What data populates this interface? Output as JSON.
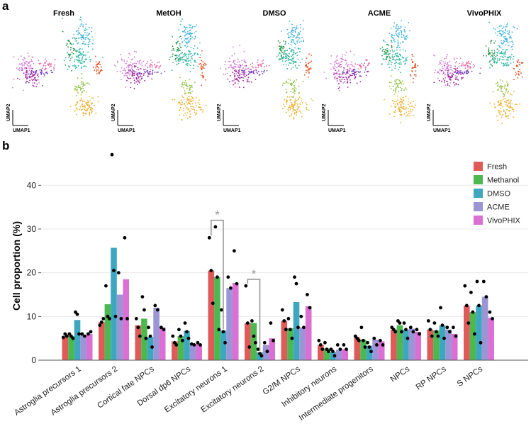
{
  "panel_a_label": "a",
  "panel_b_label": "b",
  "umap": {
    "axis_x": "UMAP1",
    "axis_y": "UMAP2",
    "panels": [
      {
        "title": "Fresh"
      },
      {
        "title": "MetOH"
      },
      {
        "title": "DMSO"
      },
      {
        "title": "ACME"
      },
      {
        "title": "VivoPHIX"
      }
    ],
    "cluster_colors": [
      "#d580d8",
      "#9a1f9a",
      "#6a3fc4",
      "#e8609a",
      "#1f8f3a",
      "#3fb3d8",
      "#2fb8a0",
      "#e05020",
      "#8cc03f",
      "#f0b030"
    ]
  },
  "chart_data": {
    "type": "bar",
    "title": "",
    "xlabel": "",
    "ylabel": "Cell proportion (%)",
    "ylim": [
      0,
      48
    ],
    "yticks": [
      0,
      10,
      20,
      30,
      40
    ],
    "legend_position": "top-right",
    "categories": [
      "Astroglia precursors 1",
      "Astroglia precursors 2",
      "Cortical fate NPCs",
      "Dorsal dp6 NPCs",
      "Excitatory neurons 1",
      "Excitatory neurons 2",
      "G2/M NPCs",
      "Inhibitory neurons",
      "Intermediate progenitors",
      "NPCs",
      "RP NPCs",
      "S NPCs"
    ],
    "series": [
      {
        "name": "Fresh",
        "color": "#e05a5a",
        "values": [
          5.5,
          8.7,
          8.0,
          4.3,
          20.5,
          8.5,
          9.0,
          3.5,
          5.2,
          7.0,
          7.0,
          12.5
        ],
        "points": [
          [
            5.2,
            6.0,
            5.5
          ],
          [
            8.0,
            8.7,
            9.5
          ],
          [
            9.5,
            7.5,
            5.5
          ],
          [
            5.5,
            4.0,
            3.5
          ],
          [
            28.0,
            20.5,
            13.0
          ],
          [
            17.0,
            8.5,
            3.0
          ],
          [
            11.5,
            9.0,
            7.0
          ],
          [
            4.5,
            3.5,
            2.5
          ],
          [
            5.5,
            5.0,
            4.5
          ],
          [
            7.5,
            7.0,
            6.5
          ],
          [
            9.0,
            7.0,
            5.5
          ],
          [
            17.0,
            12.5,
            8.5
          ]
        ]
      },
      {
        "name": "Methanol",
        "color": "#4cb84f",
        "values": [
          5.5,
          12.8,
          9.5,
          5.5,
          19.0,
          8.5,
          7.3,
          2.7,
          4.7,
          8.0,
          6.8,
          11.0
        ],
        "points": [
          [
            6.0,
            5.5,
            5.0
          ],
          [
            17.0,
            10.0,
            9.5
          ],
          [
            14.5,
            11.5,
            5.0
          ],
          [
            7.0,
            5.5,
            4.5
          ],
          [
            30.5,
            19.0,
            7.0
          ],
          [
            9.0,
            5.5,
            4.0
          ],
          [
            9.5,
            7.0,
            5.0
          ],
          [
            4.0,
            2.5,
            2.0
          ],
          [
            7.5,
            4.5,
            3.0
          ],
          [
            9.0,
            8.5,
            6.5
          ],
          [
            8.5,
            6.5,
            5.5
          ],
          [
            15.5,
            11.0,
            6.0
          ]
        ]
      },
      {
        "name": "DMSO",
        "color": "#3ea7c0",
        "values": [
          9.2,
          25.7,
          5.3,
          6.7,
          6.8,
          1.8,
          13.3,
          1.9,
          3.3,
          7.0,
          8.0,
          12.5
        ],
        "points": [
          [
            11.0,
            10.5,
            6.0
          ],
          [
            47.0,
            20.5,
            10.0
          ],
          [
            7.5,
            5.5,
            3.0
          ],
          [
            8.5,
            6.5,
            5.0
          ],
          [
            11.5,
            6.5,
            4.0
          ],
          [
            2.5,
            1.5,
            1.0
          ],
          [
            19.0,
            17.5,
            7.5
          ],
          [
            2.5,
            2.0,
            1.0
          ],
          [
            4.0,
            3.0,
            2.0
          ],
          [
            8.5,
            7.0,
            5.0
          ],
          [
            12.0,
            8.0,
            5.0
          ],
          [
            18.0,
            12.5,
            4.0
          ]
        ]
      },
      {
        "name": "ACME",
        "color": "#9b95d6",
        "values": [
          5.7,
          15.0,
          12.0,
          3.7,
          16.5,
          3.5,
          7.5,
          2.4,
          4.7,
          7.2,
          7.0,
          14.5
        ],
        "points": [
          [
            6.0,
            5.5
          ],
          [
            20.0,
            9.5
          ],
          [
            12.5,
            11.5
          ],
          [
            3.7,
            3.5
          ],
          [
            19.0,
            16.5
          ],
          [
            4.0,
            2.0
          ],
          [
            10.0,
            7.5
          ],
          [
            3.5,
            2.5
          ],
          [
            5.0,
            3.5
          ],
          [
            7.5,
            6.5
          ],
          [
            7.5,
            6.5
          ],
          [
            18.0,
            14.5
          ]
        ]
      },
      {
        "name": "VivoPHIX",
        "color": "#db6fd3",
        "values": [
          6.0,
          18.5,
          7.5,
          3.7,
          17.7,
          5.0,
          12.3,
          2.5,
          4.3,
          6.5,
          6.0,
          9.7
        ],
        "points": [
          [
            6.0,
            6.5
          ],
          [
            28.0,
            9.5
          ],
          [
            7.5,
            7.0
          ],
          [
            4.0,
            3.5
          ],
          [
            25.0,
            17.5
          ],
          [
            8.5,
            4.5
          ],
          [
            15.0,
            12.0
          ],
          [
            3.5,
            2.5
          ],
          [
            4.5,
            3.5
          ],
          [
            7.0,
            6.0
          ],
          [
            7.5,
            5.5
          ],
          [
            11.0,
            9.5
          ]
        ]
      }
    ],
    "significance": [
      {
        "category": "Excitatory neurons 1",
        "from": "Fresh",
        "to": "DMSO",
        "label": "*"
      },
      {
        "category": "Excitatory neurons 2",
        "from": "Fresh",
        "to": "DMSO",
        "label": "*"
      }
    ]
  }
}
